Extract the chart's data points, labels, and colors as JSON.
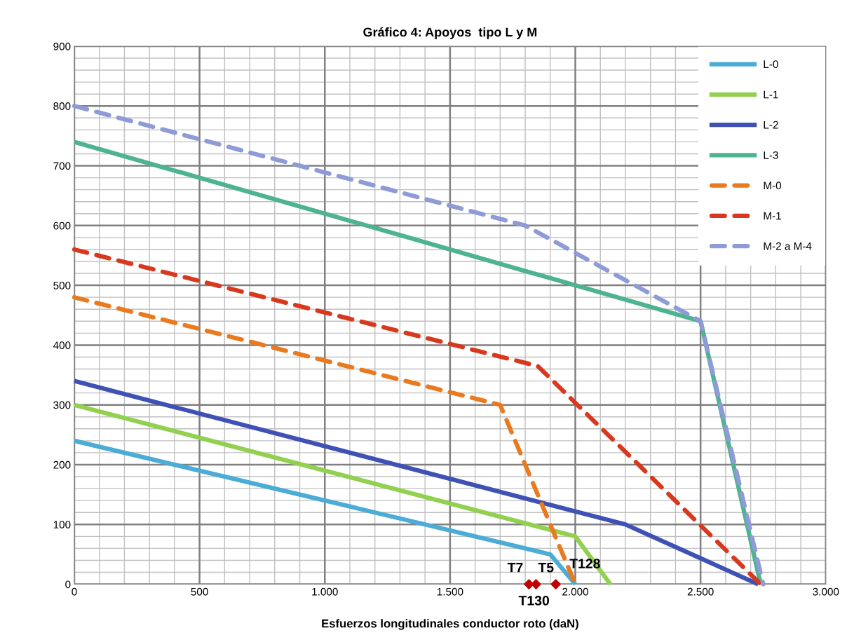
{
  "chart_data": {
    "type": "line",
    "title": "Gráfico 4: Apoyos  tipo L y M",
    "xlabel": "Esfuerzos longitudinales conductor roto (daN)",
    "xlim": [
      0,
      3000
    ],
    "ylim": [
      0,
      900
    ],
    "xticks": [
      {
        "value": 0,
        "label": "0"
      },
      {
        "value": 500,
        "label": "500"
      },
      {
        "value": 1000,
        "label": "1.000"
      },
      {
        "value": 1500,
        "label": "1.500"
      },
      {
        "value": 2000,
        "label": "2.000"
      },
      {
        "value": 2500,
        "label": "2.500"
      },
      {
        "value": 3000,
        "label": "3.000"
      }
    ],
    "yticks": [
      0,
      100,
      200,
      300,
      400,
      500,
      600,
      700,
      800,
      900
    ],
    "grid": true,
    "legend": "top right",
    "marker": "none",
    "series": [
      {
        "name": "L-0",
        "color": "#4bacd6",
        "line_style": "solid",
        "x": [
          0,
          1900,
          2000
        ],
        "values": [
          240,
          50,
          0
        ]
      },
      {
        "name": "L-1",
        "color": "#92d050",
        "line_style": "solid",
        "x": [
          0,
          2000,
          2140
        ],
        "values": [
          300,
          80,
          0
        ]
      },
      {
        "name": "L-2",
        "color": "#3f51b5",
        "line_style": "solid",
        "x": [
          0,
          2200,
          2730
        ],
        "values": [
          340,
          100,
          0
        ]
      },
      {
        "name": "L-3",
        "color": "#4db391",
        "line_style": "solid",
        "x": [
          0,
          2500,
          2740
        ],
        "values": [
          740,
          440,
          0
        ]
      },
      {
        "name": "M-0",
        "color": "#ea7a1f",
        "line_style": "dashed",
        "x": [
          0,
          1700,
          2000
        ],
        "values": [
          480,
          300,
          0
        ]
      },
      {
        "name": "M-1",
        "color": "#d8391e",
        "line_style": "dashed",
        "x": [
          0,
          1850,
          2740
        ],
        "values": [
          560,
          365,
          0
        ]
      },
      {
        "name": "M-2 a M-4",
        "color": "#8e9bd6",
        "line_style": "dashed",
        "x": [
          0,
          1800,
          2500,
          2750
        ],
        "values": [
          800,
          600,
          440,
          0
        ]
      },
      {
        "type": "scatter",
        "marker": "diamond",
        "color": "#c00000",
        "x": [
          1815,
          1843,
          1922
        ],
        "values": [
          0,
          0,
          0
        ]
      }
    ],
    "annotations": [
      {
        "text": "T7",
        "x": 1815,
        "y": 0
      },
      {
        "text": "T130",
        "x": 1843,
        "y": 0
      },
      {
        "text": "T5",
        "x": 1922,
        "y": 0
      },
      {
        "text": "T128",
        "x": 1922,
        "y": 0
      }
    ]
  }
}
